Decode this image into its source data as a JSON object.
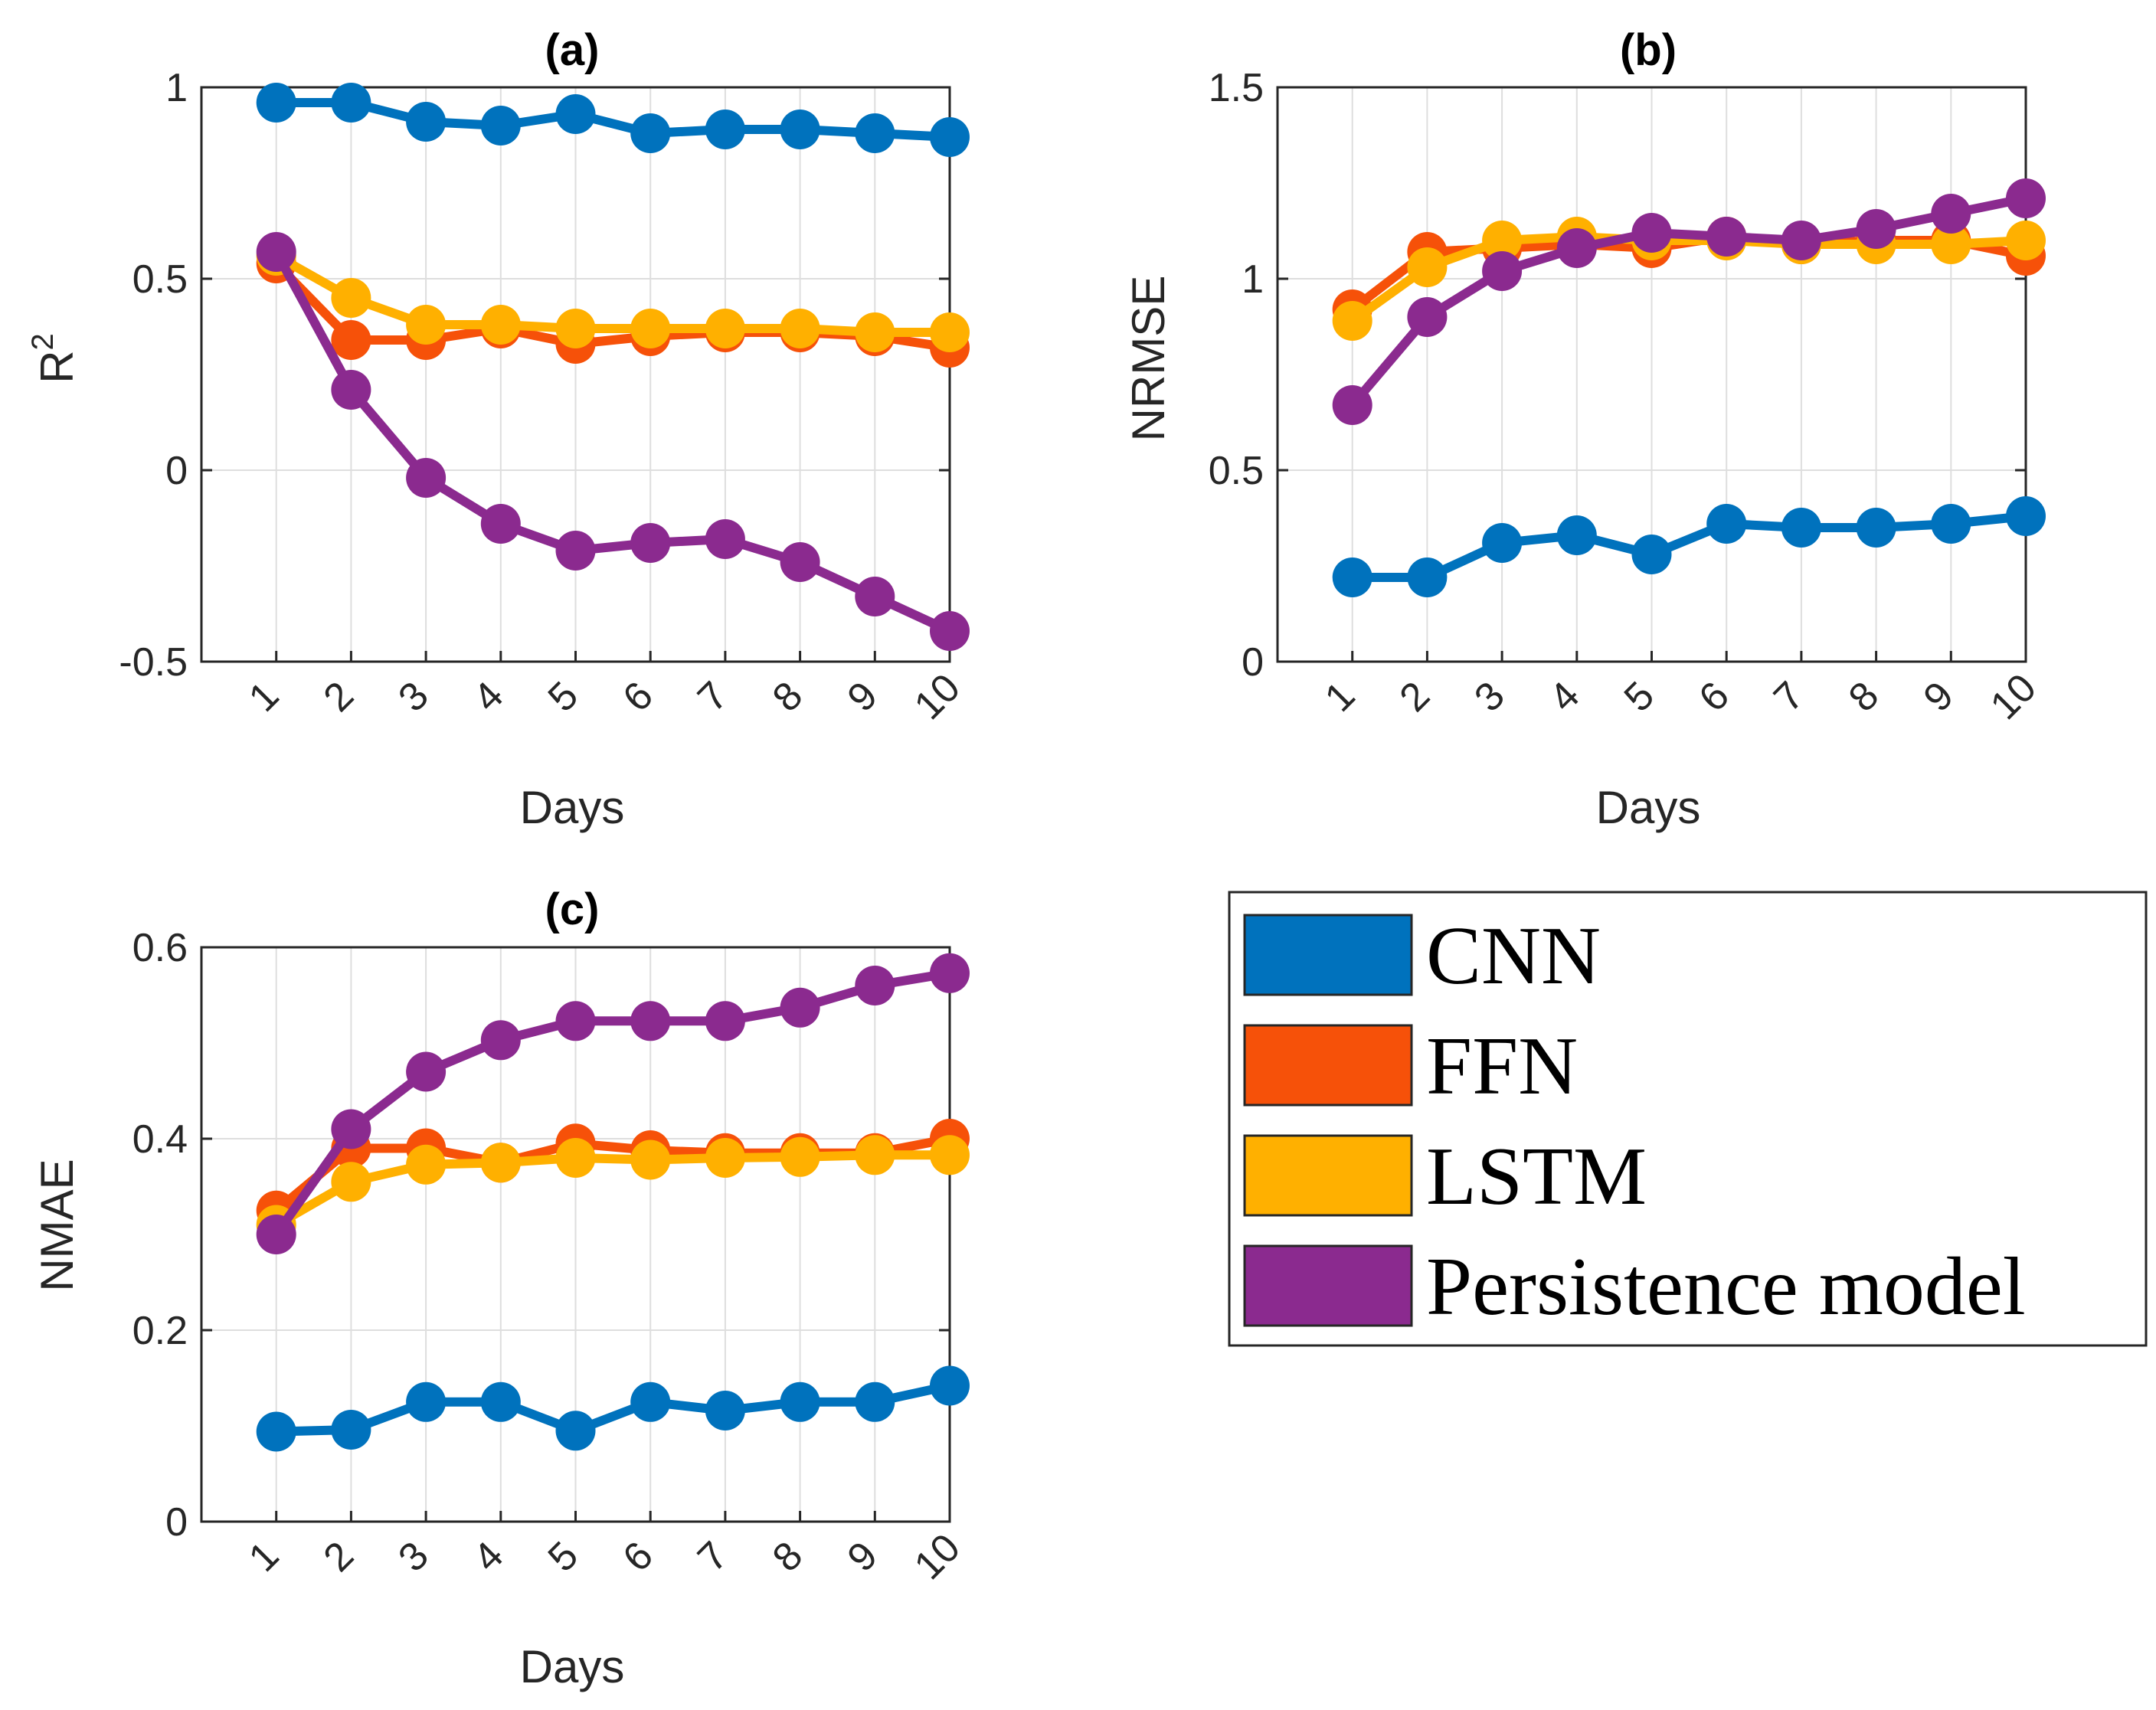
{
  "legend": [
    {
      "name": "CNN",
      "color": "#0072BD"
    },
    {
      "name": "FFN",
      "color": "#F65109"
    },
    {
      "name": "LSTM",
      "color": "#FFB000"
    },
    {
      "name": "Persistence model",
      "color": "#8B2A8F"
    }
  ],
  "chart_data": [
    {
      "type": "line",
      "panel": "a",
      "title": "(a)",
      "xlabel": "Days",
      "ylabel": "R²",
      "ylabel_base": "R",
      "ylabel_sup": "2",
      "x": [
        1,
        2,
        3,
        4,
        5,
        6,
        7,
        8,
        9,
        10
      ],
      "xlim": [
        0,
        10
      ],
      "ylim": [
        -0.5,
        1
      ],
      "yticks": [
        -0.5,
        0,
        0.5,
        1
      ],
      "ytick_labels": [
        "-0.5",
        "0",
        "0.5",
        "1"
      ],
      "grid": true,
      "series": [
        {
          "name": "CNN",
          "values": [
            0.96,
            0.96,
            0.91,
            0.9,
            0.93,
            0.88,
            0.89,
            0.89,
            0.88,
            0.87
          ]
        },
        {
          "name": "FFN",
          "values": [
            0.54,
            0.34,
            0.34,
            0.37,
            0.33,
            0.35,
            0.36,
            0.36,
            0.35,
            0.32
          ]
        },
        {
          "name": "LSTM",
          "values": [
            0.56,
            0.45,
            0.38,
            0.38,
            0.37,
            0.37,
            0.37,
            0.37,
            0.36,
            0.36
          ]
        },
        {
          "name": "Persistence model",
          "values": [
            0.57,
            0.21,
            -0.02,
            -0.14,
            -0.21,
            -0.19,
            -0.18,
            -0.24,
            -0.33,
            -0.42
          ]
        }
      ]
    },
    {
      "type": "line",
      "panel": "b",
      "title": "(b)",
      "xlabel": "Days",
      "ylabel": "NRMSE",
      "x": [
        1,
        2,
        3,
        4,
        5,
        6,
        7,
        8,
        9,
        10
      ],
      "xlim": [
        0,
        10
      ],
      "ylim": [
        0,
        1.5
      ],
      "yticks": [
        0,
        0.5,
        1,
        1.5
      ],
      "ytick_labels": [
        "0",
        "0.5",
        "1",
        "1.5"
      ],
      "grid": true,
      "series": [
        {
          "name": "CNN",
          "values": [
            0.22,
            0.22,
            0.31,
            0.33,
            0.28,
            0.36,
            0.35,
            0.35,
            0.36,
            0.38
          ]
        },
        {
          "name": "FFN",
          "values": [
            0.92,
            1.07,
            1.08,
            1.09,
            1.08,
            1.11,
            1.09,
            1.1,
            1.1,
            1.06
          ]
        },
        {
          "name": "LSTM",
          "values": [
            0.89,
            1.03,
            1.1,
            1.11,
            1.1,
            1.1,
            1.09,
            1.09,
            1.09,
            1.1
          ]
        },
        {
          "name": "Persistence model",
          "values": [
            0.67,
            0.9,
            1.02,
            1.08,
            1.12,
            1.11,
            1.1,
            1.13,
            1.17,
            1.21
          ]
        }
      ]
    },
    {
      "type": "line",
      "panel": "c",
      "title": "(c)",
      "xlabel": "Days",
      "ylabel": "NMAE",
      "x": [
        1,
        2,
        3,
        4,
        5,
        6,
        7,
        8,
        9,
        10
      ],
      "xlim": [
        0,
        10
      ],
      "ylim": [
        0,
        0.6
      ],
      "yticks": [
        0,
        0.2,
        0.4,
        0.6
      ],
      "ytick_labels": [
        "0",
        "0.2",
        "0.4",
        "0.6"
      ],
      "grid": true,
      "series": [
        {
          "name": "CNN",
          "values": [
            0.094,
            0.096,
            0.125,
            0.125,
            0.095,
            0.125,
            0.116,
            0.125,
            0.125,
            0.142
          ]
        },
        {
          "name": "FFN",
          "values": [
            0.325,
            0.39,
            0.39,
            0.375,
            0.395,
            0.388,
            0.385,
            0.385,
            0.385,
            0.4
          ]
        },
        {
          "name": "LSTM",
          "values": [
            0.31,
            0.355,
            0.373,
            0.375,
            0.38,
            0.378,
            0.38,
            0.381,
            0.383,
            0.383
          ]
        },
        {
          "name": "Persistence model",
          "values": [
            0.3,
            0.41,
            0.47,
            0.503,
            0.523,
            0.523,
            0.523,
            0.537,
            0.56,
            0.573
          ]
        }
      ]
    }
  ]
}
